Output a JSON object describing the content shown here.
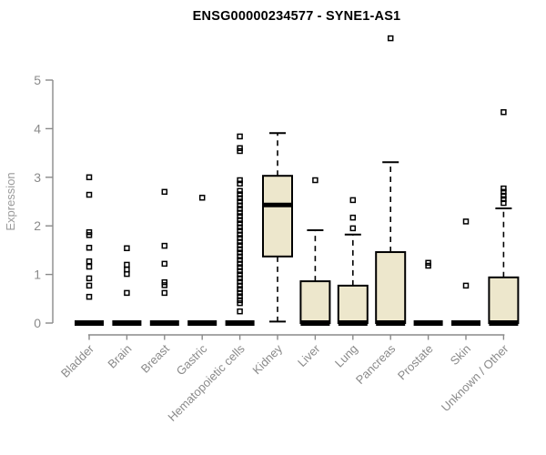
{
  "chart_data": {
    "type": "boxplot",
    "title": "ENSG00000234577 - SYNE1-AS1",
    "ylabel": "Expression",
    "xlabel": "",
    "ylim": [
      0,
      5
    ],
    "yticks": [
      0,
      1,
      2,
      3,
      4,
      5
    ],
    "grid": "off",
    "legend": "none",
    "categories": [
      "Bladder",
      "Brain",
      "Breast",
      "Gastric",
      "Hematopoietic cells",
      "Kidney",
      "Liver",
      "Lung",
      "Pancreas",
      "Prostate",
      "Skin",
      "Unknown / Other"
    ],
    "boxes": [
      {
        "category": "Bladder",
        "low": 0,
        "q1": 0,
        "median": 0,
        "q3": 0,
        "high": 0,
        "outliers": [
          3.0,
          2.64,
          1.87,
          1.81,
          1.55,
          1.27,
          1.16,
          0.92,
          0.77,
          0.54
        ]
      },
      {
        "category": "Brain",
        "low": 0,
        "q1": 0,
        "median": 0,
        "q3": 0,
        "high": 0,
        "outliers": [
          1.54,
          1.2,
          1.1,
          1.01,
          0.62
        ]
      },
      {
        "category": "Breast",
        "low": 0,
        "q1": 0,
        "median": 0,
        "q3": 0,
        "high": 0,
        "outliers": [
          2.7,
          1.59,
          1.22,
          0.84,
          0.78,
          0.62
        ]
      },
      {
        "category": "Gastric",
        "low": 0,
        "q1": 0,
        "median": 0,
        "q3": 0,
        "high": 0,
        "outliers": [
          2.58
        ]
      },
      {
        "category": "Hematopoietic cells",
        "low": 0,
        "q1": 0,
        "median": 0,
        "q3": 0,
        "high": 0,
        "outliers": [
          3.84,
          3.6,
          3.54,
          2.94,
          2.87,
          2.72,
          2.65,
          2.57,
          2.5,
          2.42,
          2.35,
          2.27,
          2.2,
          2.12,
          2.05,
          1.97,
          1.9,
          1.82,
          1.75,
          1.67,
          1.6,
          1.52,
          1.45,
          1.37,
          1.3,
          1.22,
          1.15,
          1.07,
          1.0,
          0.92,
          0.85,
          0.77,
          0.7,
          0.62,
          0.55,
          0.47,
          0.41,
          0.24
        ]
      },
      {
        "category": "Kidney",
        "low": 0.03,
        "q1": 1.37,
        "median": 2.43,
        "q3": 3.03,
        "high": 3.91,
        "outliers": []
      },
      {
        "category": "Liver",
        "low": 0,
        "q1": 0,
        "median": 0,
        "q3": 0.86,
        "high": 1.91,
        "outliers": [
          2.94
        ]
      },
      {
        "category": "Lung",
        "low": 0,
        "q1": 0,
        "median": 0,
        "q3": 0.77,
        "high": 1.82,
        "outliers": [
          2.53,
          2.17,
          1.95
        ]
      },
      {
        "category": "Pancreas",
        "low": 0,
        "q1": 0,
        "median": 0,
        "q3": 1.46,
        "high": 3.31,
        "outliers": [
          5.86
        ]
      },
      {
        "category": "Prostate",
        "low": 0,
        "q1": 0,
        "median": 0,
        "q3": 0,
        "high": 0,
        "outliers": [
          1.24,
          1.18
        ]
      },
      {
        "category": "Skin",
        "low": 0,
        "q1": 0,
        "median": 0,
        "q3": 0,
        "high": 0,
        "outliers": [
          2.09,
          0.77
        ]
      },
      {
        "category": "Unknown / Other",
        "low": 0,
        "q1": 0,
        "median": 0,
        "q3": 0.94,
        "high": 2.36,
        "outliers": [
          4.34,
          2.77,
          2.7,
          2.62,
          2.55,
          2.47
        ]
      }
    ],
    "colors": {
      "box_fill": "#ede7cc",
      "box_stroke": "#000000",
      "median": "#000000",
      "whisker": "#000000",
      "outlier": "#000000",
      "axis": "#8a8a8a",
      "tick_label": "#8a8a8a",
      "ylabel": "#9a9a9a",
      "title": "#000000",
      "background": "#ffffff"
    }
  }
}
